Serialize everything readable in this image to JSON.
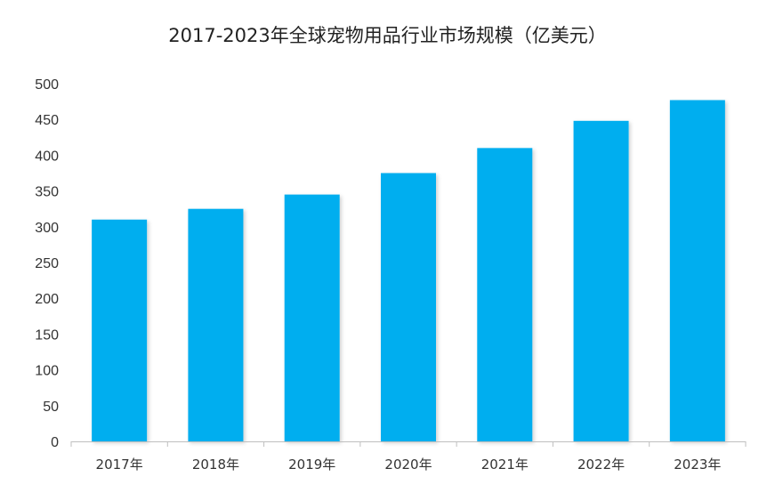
{
  "chart_data": {
    "type": "bar",
    "title": "2017-2023年全球宠物用品行业市场规模（亿美元）",
    "xlabel": "",
    "ylabel": "",
    "categories": [
      "2017年",
      "2018年",
      "2019年",
      "2020年",
      "2021年",
      "2022年",
      "2023年"
    ],
    "values": [
      310,
      325,
      345,
      375,
      410,
      448,
      477
    ],
    "ylim": [
      0,
      500
    ],
    "yticks": [
      0,
      50,
      100,
      150,
      200,
      250,
      300,
      350,
      400,
      450,
      500
    ],
    "grid": false,
    "legend": "none",
    "bar_color": "#00AEEF",
    "axis_color": "#BFBFBF"
  }
}
